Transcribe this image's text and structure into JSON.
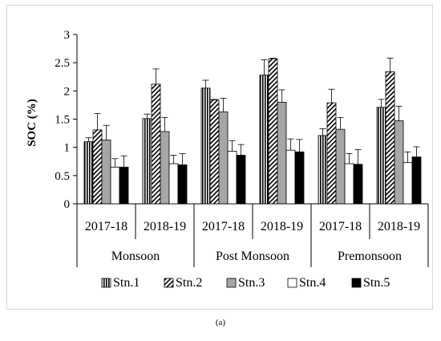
{
  "panel_label": "(a)",
  "chart_data": {
    "type": "bar",
    "title": "",
    "xlabel": "",
    "ylabel": "SOC (%)",
    "ylim": [
      0,
      3
    ],
    "yticks": [
      0,
      0.5,
      1,
      1.5,
      2,
      2.5,
      3
    ],
    "ytick_labels": [
      "0",
      "0.5",
      "1",
      "1.5",
      "2",
      "2.5",
      "3"
    ],
    "grid": false,
    "legend_position": "bottom",
    "groups": [
      {
        "label": "Monsoon",
        "categories": [
          "2017-18",
          "2018-19"
        ]
      },
      {
        "label": "Post Monsoon",
        "categories": [
          "2017-18",
          "2018-19"
        ]
      },
      {
        "label": "Premonsoon",
        "categories": [
          "2017-18",
          "2018-19"
        ]
      }
    ],
    "categories": [
      "2017-18",
      "2018-19",
      "2017-18",
      "2018-19",
      "2017-18",
      "2018-19"
    ],
    "series": [
      {
        "name": "Stn.1",
        "pattern": "vertical-lines",
        "color": "#000000",
        "values": [
          1.1,
          1.51,
          2.05,
          2.28,
          1.21,
          1.71
        ],
        "errors": [
          0.07,
          0.08,
          0.14,
          0.27,
          0.12,
          0.14
        ]
      },
      {
        "name": "Stn.2",
        "pattern": "diagonal-lines",
        "color": "#000000",
        "values": [
          1.31,
          2.12,
          1.84,
          2.57,
          1.79,
          2.34
        ],
        "errors": [
          0.29,
          0.27,
          0.01,
          0.01,
          0.24,
          0.24
        ]
      },
      {
        "name": "Stn.3",
        "pattern": "solid",
        "color": "#a6a6a6",
        "values": [
          1.13,
          1.28,
          1.63,
          1.8,
          1.32,
          1.47
        ],
        "errors": [
          0.26,
          0.25,
          0.24,
          0.22,
          0.21,
          0.26
        ]
      },
      {
        "name": "Stn.4",
        "pattern": "hollow",
        "color": "#ffffff",
        "values": [
          0.65,
          0.71,
          0.93,
          0.95,
          0.71,
          0.73
        ],
        "errors": [
          0.15,
          0.15,
          0.19,
          0.2,
          0.18,
          0.19
        ]
      },
      {
        "name": "Stn.5",
        "pattern": "solid",
        "color": "#000000",
        "values": [
          0.65,
          0.69,
          0.86,
          0.92,
          0.7,
          0.83
        ],
        "errors": [
          0.2,
          0.2,
          0.19,
          0.22,
          0.26,
          0.18
        ]
      }
    ]
  }
}
